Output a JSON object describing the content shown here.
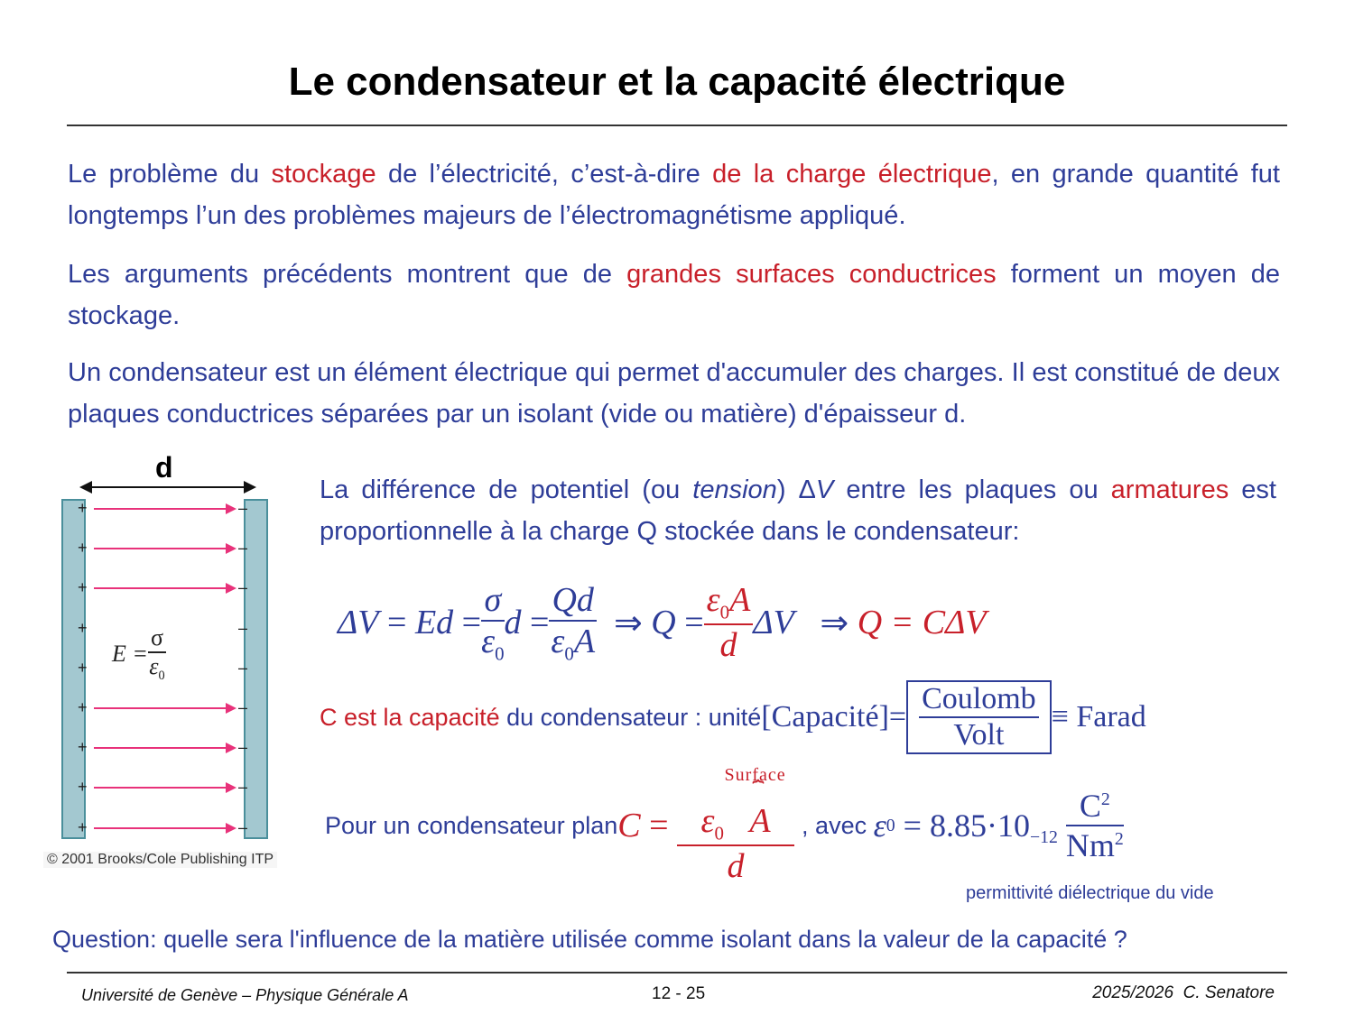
{
  "title": "Le condensateur et la capacité électrique",
  "paragraphs": {
    "p1": {
      "a": "Le problème du ",
      "b": "stockage",
      "c": " de l’électricité, c’est-à-dire ",
      "d": "de la charge électrique",
      "e": ", en grande quantité fut longtemps l’un des problèmes majeurs de l’électromagnétisme appliqué."
    },
    "p2": {
      "a": "Les arguments précédents montrent que de ",
      "b": "grandes surfaces conductrices",
      "c": " forment un moyen de stockage."
    },
    "p3": "Un condensateur est un élément électrique qui permet d'accumuler des charges. Il est constitué de deux plaques conductrices séparées par un isolant (vide ou matière) d'épaisseur d."
  },
  "figure": {
    "d_label": "d",
    "field_formula": {
      "lhs": "E =",
      "num": "σ",
      "den": "ε",
      "den_sub": "0"
    },
    "plus": "+",
    "minus": "–",
    "credit": "© 2001 Brooks/Cole Publishing ITP"
  },
  "tension": {
    "a": "La différence de potentiel (ou ",
    "b": "tension",
    "c": ") Δ",
    "d": "V",
    "e": " entre les plaques ou ",
    "f": "armatures",
    "g": " est proportionnelle à la charge Q stockée dans le condensateur:"
  },
  "equation": {
    "dv": "ΔV",
    "eq": "=",
    "Ed": "Ed",
    "sigma": "σ",
    "eps": "ε",
    "zero": "0",
    "d": "d",
    "Qd": "Qd",
    "A": "A",
    "implies": "⇒",
    "Q": "Q",
    "result": "Q = CΔV"
  },
  "capacity": {
    "a": "C est la capacité",
    "b": " du condensateur : unité ",
    "unit": "[Capacité]",
    "eq": "=",
    "num": "Coulomb",
    "den": "Volt",
    "equiv": "≡ Farad"
  },
  "plan": {
    "a": "Pour un condensateur plan ",
    "C": "C",
    "eq": "=",
    "surface": "Surface",
    "brace": "⏞",
    "avec": ", avec ",
    "value": "= 8.85·10",
    "exp": "−12",
    "unit_num": "C",
    "unit_den": "Nm",
    "sq": "2",
    "note": "permittivité diélectrique du vide"
  },
  "question": "Question: quelle sera l'influence de la matière utilisée comme isolant dans la valeur de la capacité ?",
  "footer": {
    "left": "Université de Genève – Physique Générale A",
    "center": "12 - 25",
    "right": "2025/2026  C. Senatore"
  },
  "colors": {
    "text": "#2e3d98",
    "accent": "#c8202a",
    "plate": "#a3c8d0",
    "field": "#e8327a"
  }
}
